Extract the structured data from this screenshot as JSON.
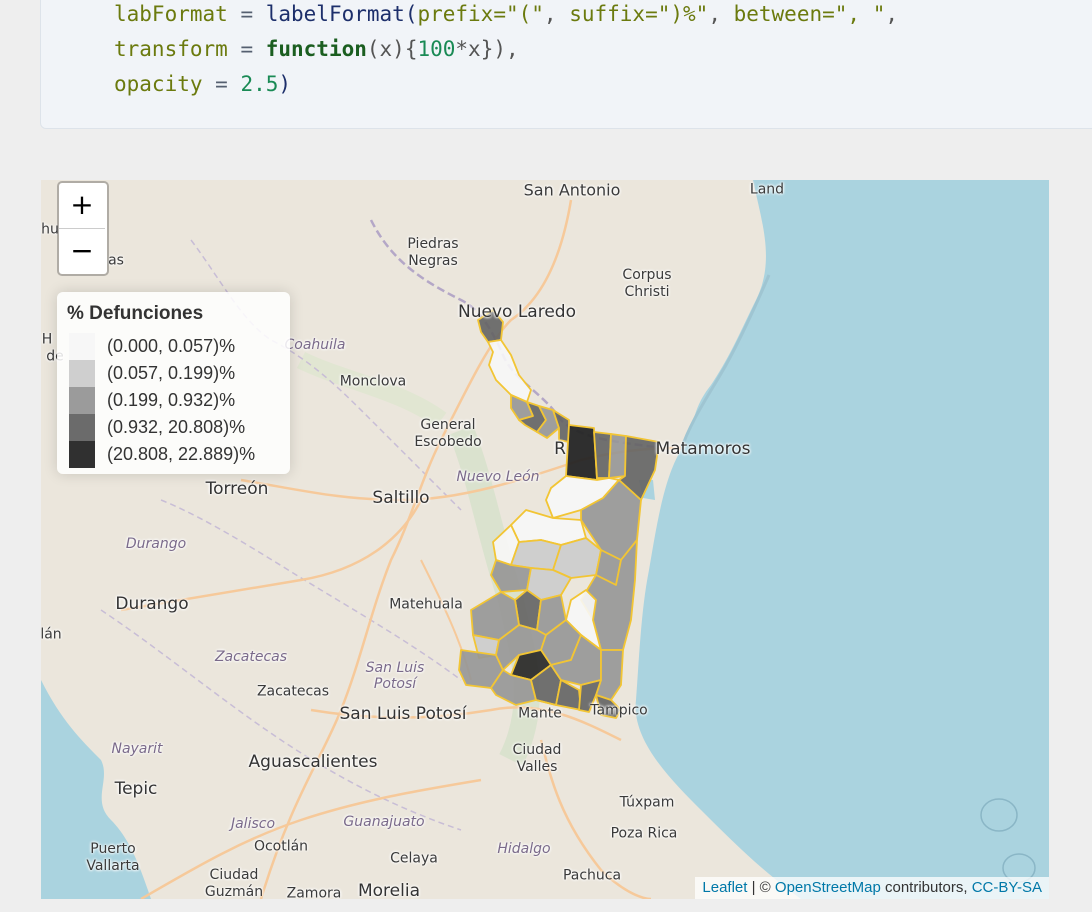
{
  "code": {
    "line1": {
      "arg": "labFormat",
      "eq": " = ",
      "fn": "labelFormat",
      "open": "(",
      "a1": "prefix=",
      "s1": "\"(\"",
      "c1": ", ",
      "a2": "suffix=",
      "s2": "\")%\"",
      "c2": ", ",
      "a3": "between=",
      "s3": "\", \"",
      "tail": ","
    },
    "line2": {
      "arg": "transform",
      "eq": " = ",
      "kw": "function",
      "sig": "(x){",
      "num": "100",
      "body": "*x})",
      "tail": ","
    },
    "line3": {
      "arg": "opacity",
      "eq": " = ",
      "num": "2.5",
      "close": ")"
    }
  },
  "map": {
    "zoom_in_label": "+",
    "zoom_out_label": "−",
    "legend": {
      "title": "% Defunciones",
      "items": [
        {
          "label": "(0.000, 0.057)%",
          "color": "#f7f7f7"
        },
        {
          "label": "(0.057, 0.199)%",
          "color": "#cccccc"
        },
        {
          "label": "(0.199, 0.932)%",
          "color": "#969696"
        },
        {
          "label": "(0.932, 20.808)%",
          "color": "#636363"
        },
        {
          "label": "(20.808, 22.889)%",
          "color": "#252525"
        }
      ]
    },
    "places": {
      "san_antonio": "San Antonio",
      "land": "Land",
      "piedras_negras": "Piedras\nNegras",
      "corpus_christi": "Corpus\nChristi",
      "nuevo_laredo": "Nuevo Laredo",
      "coahuila": "Coahuila",
      "monclova": "Monclova",
      "general_escobedo": "General\nEscobedo",
      "r_partial": "R",
      "matamoros": "Matamoros",
      "nuevo_leon": "Nuevo León",
      "torreon": "Torreón",
      "saltillo": "Saltillo",
      "durango_region": "Durango",
      "durango_city": "Durango",
      "matehuala": "Matehuala",
      "zacatecas_region": "Zacatecas",
      "slp_region": "San Luis\nPotosí",
      "zacatecas_city": "Zacatecas",
      "slp_city": "San Luis Potosí",
      "mante": "Mante",
      "tampico": "Tampico",
      "nayarit": "Nayarit",
      "aguascalientes": "Aguascalientes",
      "ciudad_valles": "Ciudad\nValles",
      "tepic": "Tepic",
      "tuxpam": "Túxpam",
      "jalisco": "Jalisco",
      "guanajuato": "Guanajuato",
      "poza_rica": "Poza Rica",
      "puerto_vallarta": "Puerto\nVallarta",
      "ocotlan": "Ocotlán",
      "celaya": "Celaya",
      "hidalgo": "Hidalgo",
      "pachuca": "Pachuca",
      "ciudad_guzman": "Ciudad\nGuzmán",
      "zamora": "Zamora",
      "morelia": "Morelia",
      "edge_hu": "hu",
      "edge_as": "as",
      "edge_h": "H",
      "edge_de": "de",
      "edge_lan": "lán"
    },
    "attribution": {
      "leaflet": "Leaflet",
      "sep": " | © ",
      "osm": "OpenStreetMap",
      "contrib": " contributors, ",
      "license": "CC-BY-SA"
    },
    "colors": {
      "water": "#aad3df",
      "land": "#ebe6dc",
      "border": "#f2c534"
    }
  }
}
